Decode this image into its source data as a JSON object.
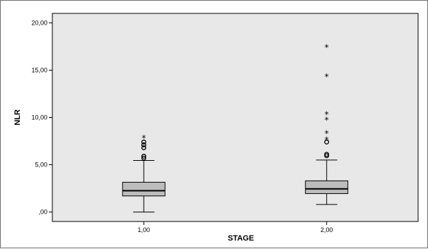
{
  "chart_data": {
    "type": "boxplot",
    "title": "",
    "xlabel": "STAGE",
    "ylabel": "NLR",
    "ylim": [
      -1,
      21
    ],
    "yticks": [
      0,
      5,
      10,
      15,
      20
    ],
    "ytick_labels": [
      ",00",
      "5,00",
      "10,00",
      "15,00",
      "20,00"
    ],
    "grid": false,
    "categories": [
      "1,00",
      "2,00"
    ],
    "boxes": [
      {
        "category": "1,00",
        "min": 0.0,
        "q1": 1.7,
        "median": 2.25,
        "q3": 3.15,
        "max": 5.45,
        "outliers": [
          5.7,
          5.9,
          6.8,
          7.1,
          7.4
        ],
        "extremes": [
          7.8
        ]
      },
      {
        "category": "2,00",
        "min": 0.8,
        "q1": 1.95,
        "median": 2.45,
        "q3": 3.3,
        "max": 5.5,
        "outliers": [
          5.95,
          6.1,
          7.4
        ],
        "extremes": [
          7.6,
          8.3,
          9.7,
          10.3,
          14.3,
          17.4
        ]
      }
    ],
    "colors": {
      "plot_background": "#e8e8e8",
      "box_fill": "#bdbdbd",
      "line": "#000000"
    }
  }
}
